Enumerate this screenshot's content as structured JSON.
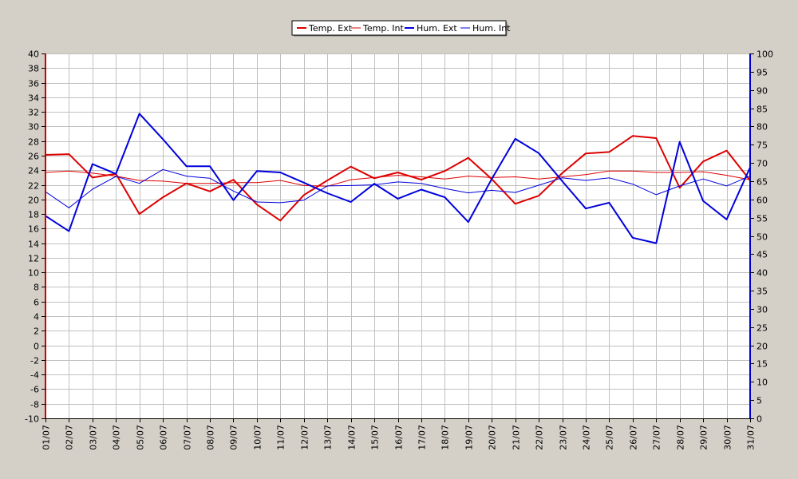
{
  "chart_data": {
    "type": "line",
    "categories": [
      "01/07",
      "02/07",
      "03/07",
      "04/07",
      "05/07",
      "06/07",
      "07/07",
      "08/07",
      "09/07",
      "10/07",
      "11/07",
      "12/07",
      "13/07",
      "14/07",
      "15/07",
      "16/07",
      "17/07",
      "18/07",
      "19/07",
      "20/07",
      "21/07",
      "22/07",
      "23/07",
      "24/07",
      "25/07",
      "26/07",
      "27/07",
      "28/07",
      "29/07",
      "30/07",
      "31/07"
    ],
    "left_axis": {
      "min": -10,
      "max": 40,
      "step": 2,
      "color": "#cc0000"
    },
    "right_axis": {
      "min": 0,
      "max": 100,
      "step": 5,
      "color": "#0000cc"
    },
    "grid": true,
    "legend_position": "top-center",
    "series": [
      {
        "name": "Temp. Ext",
        "axis": "left",
        "color": "#dd0000",
        "width": 2,
        "values": [
          26.1,
          26.2,
          23.0,
          23.5,
          18.0,
          20.3,
          22.2,
          21.1,
          22.7,
          19.3,
          17.1,
          20.6,
          22.6,
          24.5,
          22.9,
          23.7,
          22.7,
          23.9,
          25.7,
          22.8,
          19.4,
          20.5,
          23.6,
          26.3,
          26.5,
          28.7,
          28.4,
          21.6,
          25.2,
          26.7,
          22.6
        ]
      },
      {
        "name": "Temp. Int",
        "axis": "left",
        "color": "#dd0000",
        "width": 1,
        "values": [
          23.7,
          23.9,
          23.6,
          23.2,
          22.6,
          22.5,
          22.2,
          22.2,
          22.3,
          22.3,
          22.6,
          21.9,
          21.8,
          22.7,
          23.0,
          23.3,
          23.1,
          22.8,
          23.2,
          23.0,
          23.1,
          22.8,
          23.1,
          23.4,
          23.9,
          23.9,
          23.7,
          23.7,
          23.8,
          23.3,
          22.7
        ]
      },
      {
        "name": "Hum. Ext",
        "axis": "right",
        "color": "#0000dd",
        "width": 2,
        "values": [
          55.5,
          51.3,
          69.7,
          67.0,
          83.5,
          76.5,
          69.1,
          69.1,
          59.8,
          67.8,
          67.4,
          64.6,
          61.7,
          59.3,
          64.3,
          60.2,
          62.7,
          60.6,
          53.8,
          65.6,
          76.6,
          72.7,
          65.0,
          57.5,
          59.1,
          49.5,
          48.0,
          75.8,
          59.6,
          54.5,
          68.8
        ]
      },
      {
        "name": "Hum. Int",
        "axis": "right",
        "color": "#0000dd",
        "width": 1,
        "values": [
          62.1,
          57.7,
          62.8,
          66.3,
          64.4,
          68.2,
          66.4,
          65.8,
          62.3,
          59.3,
          59.1,
          59.8,
          63.7,
          63.8,
          64.0,
          64.8,
          64.4,
          63.0,
          61.8,
          62.5,
          61.9,
          63.9,
          65.9,
          65.2,
          65.9,
          64.2,
          61.3,
          63.7,
          65.6,
          63.7,
          66.4
        ]
      }
    ]
  }
}
